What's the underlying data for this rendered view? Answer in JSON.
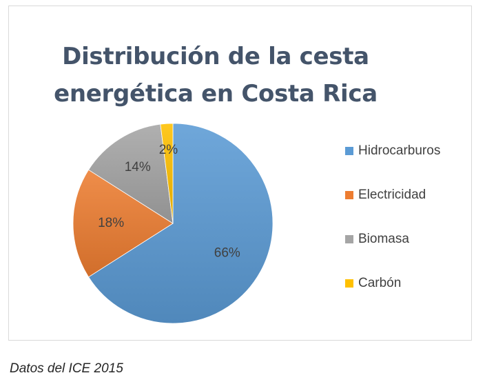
{
  "chart_data": {
    "type": "pie",
    "title_lines": [
      "Distribución de la cesta",
      "energética en Costa Rica"
    ],
    "slices": [
      {
        "label": "Hidrocarburos",
        "value": 66,
        "display": "66%",
        "color": "#5b9bd5"
      },
      {
        "label": "Electricidad",
        "value": 18,
        "display": "18%",
        "color": "#ed7d31"
      },
      {
        "label": "Biomasa",
        "value": 14,
        "display": "14%",
        "color": "#a5a5a5"
      },
      {
        "label": "Carbón",
        "value": 2,
        "display": "2%",
        "color": "#ffc000"
      }
    ],
    "legend_position": "right"
  },
  "source_note": "Datos del ICE 2015"
}
